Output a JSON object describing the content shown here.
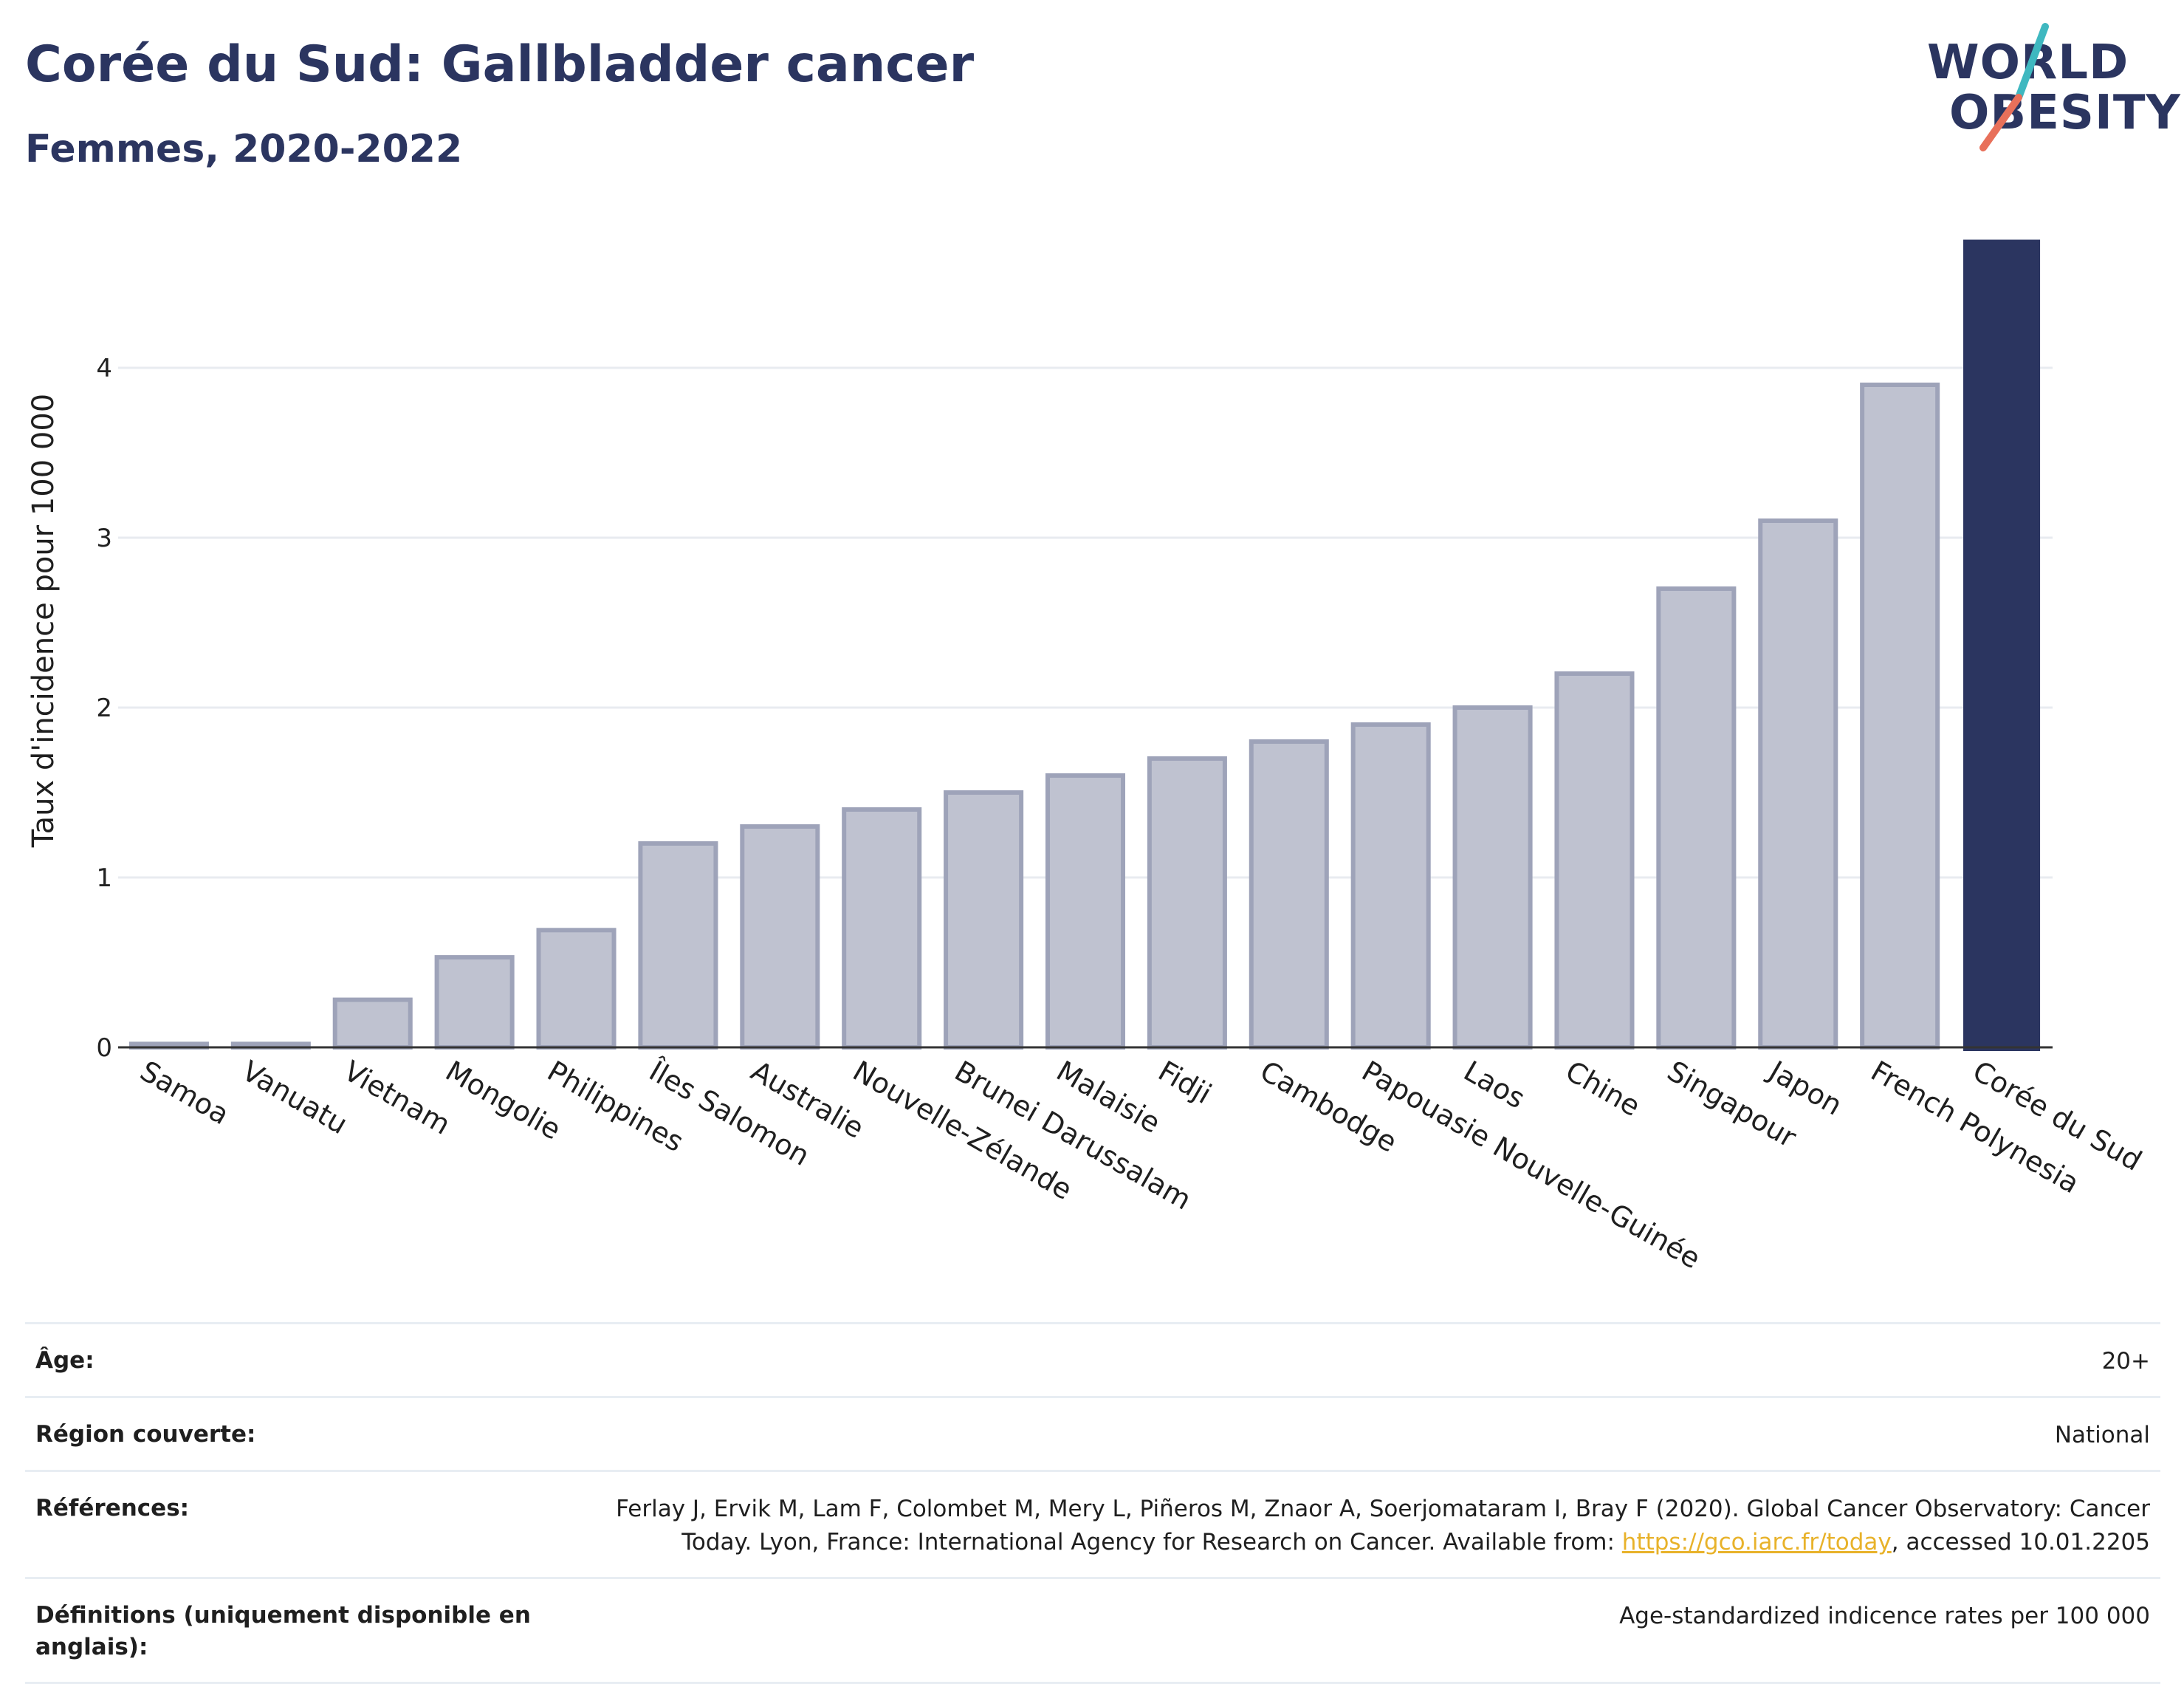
{
  "header": {
    "title": "Corée du Sud: Gallbladder cancer",
    "subtitle": "Femmes, 2020-2022"
  },
  "logo": {
    "line1": "WORLD",
    "line2": "OBESITY",
    "slash_colors": [
      "#3fb8c0",
      "#e8705a"
    ]
  },
  "chart_data": {
    "type": "bar",
    "title": "Corée du Sud: Gallbladder cancer",
    "subtitle": "Femmes, 2020-2022",
    "ylabel": "Taux d'incidence pour 100 000",
    "xlabel": "",
    "ylim": [
      0,
      4.75
    ],
    "yticks": [
      0,
      1,
      2,
      3,
      4
    ],
    "grid": true,
    "categories": [
      "Samoa",
      "Vanuatu",
      "Vietnam",
      "Mongolie",
      "Philippines",
      "Îles Salomon",
      "Australie",
      "Nouvelle-Zélande",
      "Brunei Darussalam",
      "Malaisie",
      "Fidji",
      "Cambodge",
      "Papouasie Nouvelle-Guinée",
      "Laos",
      "Chine",
      "Singapour",
      "Japon",
      "French Polynesia",
      "Corée du Sud"
    ],
    "values": [
      0.02,
      0.02,
      0.28,
      0.53,
      0.69,
      1.2,
      1.3,
      1.4,
      1.5,
      1.6,
      1.7,
      1.8,
      1.9,
      2.0,
      2.2,
      2.7,
      3.1,
      3.9,
      4.75
    ],
    "highlight": "Corée du Sud",
    "colors": {
      "bar_fill": "#bfc2d0",
      "bar_stroke": "#9ea3b9",
      "highlight": "#2b3560",
      "grid": "#e8ebf0",
      "axis": "#333333"
    }
  },
  "info": {
    "rows": [
      {
        "label": "Âge:",
        "value": "20+"
      },
      {
        "label": "Région couverte:",
        "value": "National"
      },
      {
        "label": "Références:",
        "value_line1": "Ferlay J, Ervik M, Lam F, Colombet M, Mery L, Piñeros M, Znaor A, Soerjomataram I, Bray F (2020). Global Cancer Observatory: Cancer",
        "value_line2_pre": "Today. Lyon, France: International Agency for Research on Cancer. Available from: ",
        "link": "https://gco.iarc.fr/today",
        "value_line2_post": ", accessed 10.01.2205"
      },
      {
        "label": "Définitions (uniquement disponible en anglais):",
        "value": "Age-standardized indicence rates per 100 000"
      }
    ]
  }
}
